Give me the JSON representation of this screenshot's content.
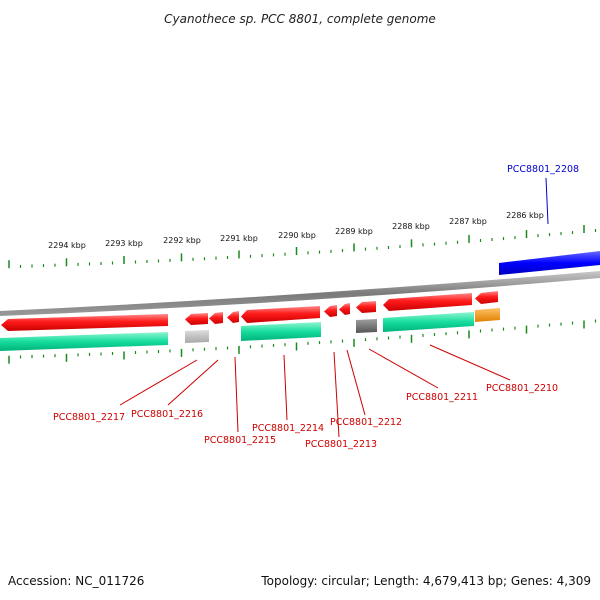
{
  "title": "Cyanothece sp. PCC 8801, complete genome",
  "footer": {
    "accession": "Accession: NC_011726",
    "summary": "Topology: circular; Length: 4,679,413 bp; Genes: 4,309"
  },
  "ticks": [
    {
      "label": "2294 kbp"
    },
    {
      "label": "2293 kbp"
    },
    {
      "label": "2292 kbp"
    },
    {
      "label": "2291 kbp"
    },
    {
      "label": "2290 kbp"
    },
    {
      "label": "2289 kbp"
    },
    {
      "label": "2288 kbp"
    },
    {
      "label": "2287 kbp"
    },
    {
      "label": "2286 kbp"
    }
  ],
  "genes": [
    {
      "label": "PCC8801_2208",
      "color": "#0000cc"
    },
    {
      "label": "PCC8801_2217",
      "color": "#cc0000"
    },
    {
      "label": "PCC8801_2216",
      "color": "#cc0000"
    },
    {
      "label": "PCC8801_2215",
      "color": "#cc0000"
    },
    {
      "label": "PCC8801_2214",
      "color": "#cc0000"
    },
    {
      "label": "PCC8801_2213",
      "color": "#cc0000"
    },
    {
      "label": "PCC8801_2212",
      "color": "#cc0000"
    },
    {
      "label": "PCC8801_2211",
      "color": "#cc0000"
    },
    {
      "label": "PCC8801_2210",
      "color": "#cc0000"
    }
  ],
  "colors": {
    "cds": "#ff0000",
    "rna": "#00d9a0",
    "forward_cds": "#0000ff",
    "pseudo": "#777777",
    "pseudo_light": "#bbbbbb",
    "misc": "#f39c12",
    "tick": "#1a8a1a",
    "backbone": "#888888"
  }
}
